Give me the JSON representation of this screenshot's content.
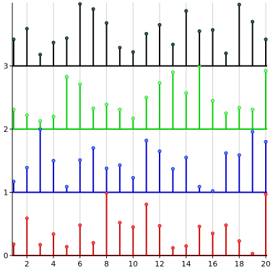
{
  "chart_data": {
    "type": "stem",
    "x": [
      1,
      2,
      3,
      4,
      5,
      6,
      7,
      8,
      9,
      10,
      11,
      12,
      13,
      14,
      15,
      16,
      17,
      18,
      19,
      20
    ],
    "xlim": [
      0.9,
      20.0
    ],
    "ylim": [
      0,
      4.0
    ],
    "x_ticks": [
      2,
      4,
      6,
      8,
      10,
      12,
      14,
      16,
      18,
      20
    ],
    "x_tick_labels": [
      "2",
      "4",
      "6",
      "8",
      "10",
      "12",
      "14",
      "16",
      "18",
      "20"
    ],
    "y_ticks": [
      0,
      1,
      2,
      3
    ],
    "y_tick_labels": [
      "0",
      "1",
      "2",
      "3"
    ],
    "grid": true,
    "series": [
      {
        "baseline": 0,
        "color": "#cc0000",
        "marker_color": "#ff5555",
        "values": [
          0.18,
          0.59,
          0.17,
          0.34,
          0.14,
          0.48,
          0.2,
          0.99,
          0.52,
          0.45,
          0.81,
          0.47,
          0.12,
          0.15,
          0.46,
          0.35,
          0.48,
          0.23,
          0.03,
          0.97
        ]
      },
      {
        "baseline": 1,
        "color": "#0000cc",
        "marker_color": "#4f8fff",
        "values": [
          1.17,
          1.39,
          2.0,
          1.5,
          1.09,
          1.51,
          1.7,
          1.38,
          1.43,
          1.23,
          1.82,
          1.65,
          1.37,
          1.55,
          1.09,
          1.02,
          1.62,
          1.59,
          1.96,
          1.8
        ]
      },
      {
        "baseline": 2,
        "color": "#00cc00",
        "marker_color": "#88ff88",
        "values": [
          2.31,
          2.22,
          2.13,
          2.2,
          2.83,
          2.71,
          2.33,
          2.39,
          2.31,
          2.17,
          2.5,
          2.73,
          2.9,
          2.57,
          3.0,
          2.45,
          2.25,
          2.34,
          2.31,
          2.92
        ]
      },
      {
        "baseline": 3,
        "color": "#000000",
        "marker_color": "#226666",
        "values": [
          3.42,
          3.59,
          3.18,
          3.37,
          3.44,
          3.98,
          3.9,
          3.68,
          3.29,
          3.22,
          3.51,
          3.65,
          3.34,
          3.87,
          3.55,
          3.57,
          3.2,
          3.97,
          3.7,
          3.42
        ]
      }
    ]
  }
}
